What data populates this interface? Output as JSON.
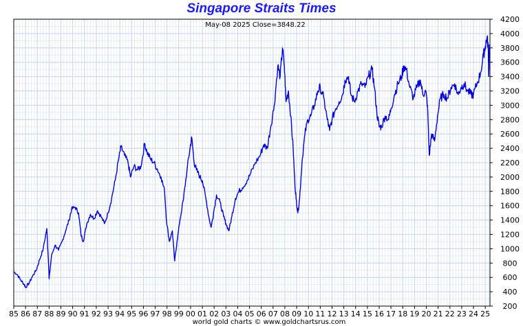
{
  "chart_data": {
    "type": "line",
    "title": "Singapore Straits Times",
    "subtitle_date": "May-08  2025",
    "subtitle_close": "Close=3848.22",
    "footer": "world gold charts © www.goldchartsrus.com",
    "xlabel": "",
    "ylabel": "",
    "xlim": [
      1985.0,
      2025.4
    ],
    "ylim": [
      200,
      4200
    ],
    "grid": true,
    "line_color": "#0000dd",
    "x_tick_labels": [
      "85",
      "86",
      "87",
      "88",
      "89",
      "90",
      "91",
      "92",
      "93",
      "94",
      "95",
      "96",
      "97",
      "98",
      "99",
      "00",
      "01",
      "02",
      "03",
      "04",
      "05",
      "06",
      "07",
      "08",
      "09",
      "10",
      "11",
      "12",
      "13",
      "14",
      "15",
      "16",
      "17",
      "18",
      "19",
      "20",
      "21",
      "22",
      "23",
      "24",
      "25"
    ],
    "y_ticks": [
      200,
      400,
      600,
      800,
      1000,
      1200,
      1400,
      1600,
      1800,
      2000,
      2200,
      2400,
      2600,
      2800,
      3000,
      3200,
      3400,
      3600,
      3800,
      4000,
      4200
    ],
    "series": [
      {
        "values": [
          [
            1985.0,
            680
          ],
          [
            1985.3,
            640
          ],
          [
            1985.6,
            560
          ],
          [
            1985.9,
            500
          ],
          [
            1986.0,
            460
          ],
          [
            1986.3,
            520
          ],
          [
            1986.6,
            620
          ],
          [
            1986.9,
            700
          ],
          [
            1987.2,
            850
          ],
          [
            1987.5,
            1000
          ],
          [
            1987.8,
            1280
          ],
          [
            1987.95,
            800
          ],
          [
            1988.0,
            580
          ],
          [
            1988.2,
            900
          ],
          [
            1988.5,
            1050
          ],
          [
            1988.8,
            980
          ],
          [
            1989.1,
            1100
          ],
          [
            1989.4,
            1250
          ],
          [
            1989.7,
            1400
          ],
          [
            1989.9,
            1550
          ],
          [
            1990.2,
            1580
          ],
          [
            1990.5,
            1500
          ],
          [
            1990.7,
            1200
          ],
          [
            1990.9,
            1100
          ],
          [
            1991.2,
            1350
          ],
          [
            1991.5,
            1480
          ],
          [
            1991.8,
            1420
          ],
          [
            1992.1,
            1530
          ],
          [
            1992.4,
            1450
          ],
          [
            1992.7,
            1350
          ],
          [
            1993.0,
            1500
          ],
          [
            1993.3,
            1700
          ],
          [
            1993.6,
            1950
          ],
          [
            1993.9,
            2250
          ],
          [
            1994.1,
            2420
          ],
          [
            1994.4,
            2300
          ],
          [
            1994.7,
            2200
          ],
          [
            1994.9,
            2000
          ],
          [
            1995.2,
            2150
          ],
          [
            1995.5,
            2100
          ],
          [
            1995.8,
            2150
          ],
          [
            1996.1,
            2470
          ],
          [
            1996.3,
            2350
          ],
          [
            1996.6,
            2250
          ],
          [
            1996.9,
            2200
          ],
          [
            1997.2,
            2100
          ],
          [
            1997.5,
            2000
          ],
          [
            1997.8,
            1800
          ],
          [
            1997.95,
            1400
          ],
          [
            1998.2,
            1100
          ],
          [
            1998.45,
            1250
          ],
          [
            1998.65,
            830
          ],
          [
            1998.85,
            1100
          ],
          [
            1999.1,
            1400
          ],
          [
            1999.4,
            1700
          ],
          [
            1999.7,
            2100
          ],
          [
            1999.95,
            2400
          ],
          [
            2000.1,
            2550
          ],
          [
            2000.3,
            2200
          ],
          [
            2000.5,
            2100
          ],
          [
            2000.8,
            2000
          ],
          [
            2001.0,
            1950
          ],
          [
            2001.3,
            1700
          ],
          [
            2001.6,
            1400
          ],
          [
            2001.75,
            1300
          ],
          [
            2001.95,
            1500
          ],
          [
            2002.2,
            1750
          ],
          [
            2002.5,
            1650
          ],
          [
            2002.8,
            1450
          ],
          [
            2003.0,
            1350
          ],
          [
            2003.25,
            1250
          ],
          [
            2003.5,
            1450
          ],
          [
            2003.8,
            1700
          ],
          [
            2004.1,
            1800
          ],
          [
            2004.4,
            1850
          ],
          [
            2004.8,
            1950
          ],
          [
            2005.1,
            2050
          ],
          [
            2005.5,
            2200
          ],
          [
            2005.9,
            2300
          ],
          [
            2006.2,
            2450
          ],
          [
            2006.5,
            2400
          ],
          [
            2006.8,
            2700
          ],
          [
            2007.1,
            3000
          ],
          [
            2007.4,
            3550
          ],
          [
            2007.6,
            3400
          ],
          [
            2007.8,
            3800
          ],
          [
            2007.95,
            3550
          ],
          [
            2008.1,
            3050
          ],
          [
            2008.3,
            3200
          ],
          [
            2008.5,
            2850
          ],
          [
            2008.7,
            2400
          ],
          [
            2008.85,
            1900
          ],
          [
            2008.95,
            1700
          ],
          [
            2009.1,
            1500
          ],
          [
            2009.25,
            1700
          ],
          [
            2009.45,
            2200
          ],
          [
            2009.7,
            2600
          ],
          [
            2009.95,
            2800
          ],
          [
            2010.2,
            2850
          ],
          [
            2010.5,
            3000
          ],
          [
            2010.8,
            3200
          ],
          [
            2011.0,
            3250
          ],
          [
            2011.3,
            3100
          ],
          [
            2011.6,
            2800
          ],
          [
            2011.8,
            2650
          ],
          [
            2012.0,
            2800
          ],
          [
            2012.3,
            2950
          ],
          [
            2012.6,
            3050
          ],
          [
            2012.9,
            3150
          ],
          [
            2013.1,
            3350
          ],
          [
            2013.4,
            3400
          ],
          [
            2013.6,
            3150
          ],
          [
            2013.9,
            3050
          ],
          [
            2014.2,
            3200
          ],
          [
            2014.5,
            3300
          ],
          [
            2014.8,
            3250
          ],
          [
            2015.1,
            3400
          ],
          [
            2015.4,
            3500
          ],
          [
            2015.6,
            3250
          ],
          [
            2015.8,
            2900
          ],
          [
            2016.0,
            2700
          ],
          [
            2016.2,
            2700
          ],
          [
            2016.5,
            2850
          ],
          [
            2016.8,
            2800
          ],
          [
            2017.0,
            2950
          ],
          [
            2017.3,
            3150
          ],
          [
            2017.6,
            3300
          ],
          [
            2017.9,
            3400
          ],
          [
            2018.1,
            3550
          ],
          [
            2018.3,
            3500
          ],
          [
            2018.6,
            3250
          ],
          [
            2018.9,
            3100
          ],
          [
            2019.2,
            3250
          ],
          [
            2019.5,
            3350
          ],
          [
            2019.7,
            3150
          ],
          [
            2019.95,
            3200
          ],
          [
            2020.1,
            3000
          ],
          [
            2020.25,
            2300
          ],
          [
            2020.45,
            2600
          ],
          [
            2020.7,
            2500
          ],
          [
            2020.95,
            2850
          ],
          [
            2021.2,
            3100
          ],
          [
            2021.5,
            3150
          ],
          [
            2021.8,
            3100
          ],
          [
            2022.1,
            3250
          ],
          [
            2022.4,
            3300
          ],
          [
            2022.7,
            3150
          ],
          [
            2022.95,
            3250
          ],
          [
            2023.2,
            3300
          ],
          [
            2023.5,
            3200
          ],
          [
            2023.8,
            3150
          ],
          [
            2024.0,
            3150
          ],
          [
            2024.3,
            3300
          ],
          [
            2024.6,
            3450
          ],
          [
            2024.85,
            3700
          ],
          [
            2025.0,
            3820
          ],
          [
            2025.15,
            3950
          ],
          [
            2025.25,
            3800
          ],
          [
            2025.3,
            3400
          ],
          [
            2025.35,
            3848
          ]
        ]
      }
    ]
  }
}
